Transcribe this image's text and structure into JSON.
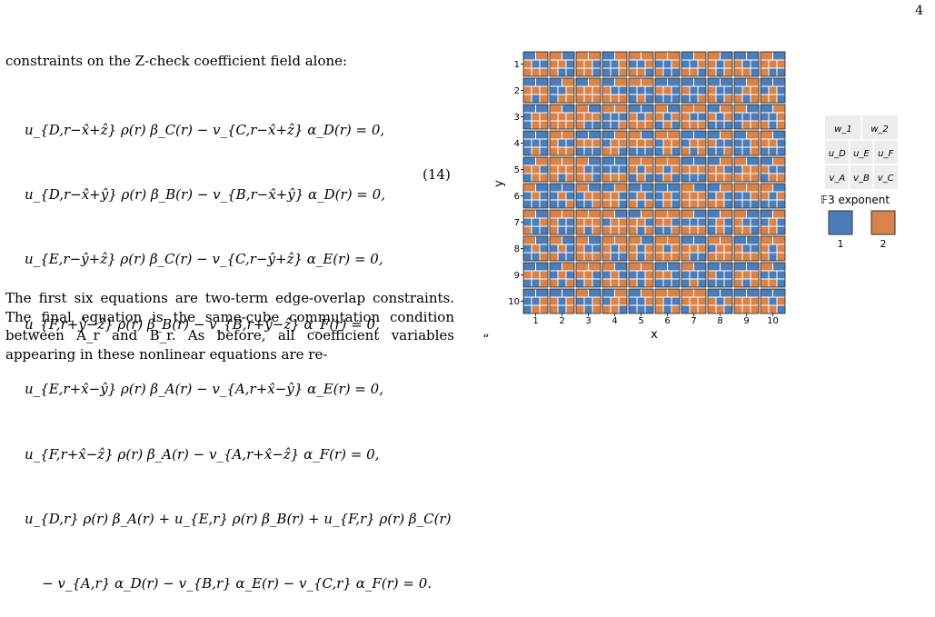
{
  "page_number": "4",
  "intro_line": "constraints on the Z-check coefficient field alone:",
  "equations": [
    "u_{D,r−x̂+ẑ} ρ(r) β_C(r) − v_{C,r−x̂+ẑ} α_D(r) = 0,",
    "u_{D,r−x̂+ŷ} ρ(r) β_B(r) − v_{B,r−x̂+ŷ} α_D(r) = 0,",
    "u_{E,r−ŷ+ẑ} ρ(r) β_C(r) − v_{C,r−ŷ+ẑ} α_E(r) = 0,",
    "u_{F,r+ŷ−ẑ} ρ(r) β_B(r) − v_{B,r+ŷ−ẑ} α_F(r) = 0,",
    "u_{E,r+x̂−ŷ} ρ(r) β_A(r) − v_{A,r+x̂−ŷ} α_E(r) = 0,",
    "u_{F,r+x̂−ẑ} ρ(r) β_A(r) − v_{A,r+x̂−ẑ} α_F(r) = 0,",
    "u_{D,r} ρ(r) β_A(r) + u_{E,r} ρ(r) β_B(r) + u_{F,r} ρ(r) β_C(r)",
    "    − v_{A,r} α_D(r) − v_{B,r} α_E(r) − v_{C,r} α_F(r) = 0."
  ],
  "equation_number": "(14)",
  "paragraph": "The first six equations are two-term edge-overlap constraints. The final equation is the same-cube commutation condition between A_r and B_r. As before, all coefficient variables appearing in these nonlinear equations are re-",
  "stray_mark": "“",
  "chart_data": {
    "type": "heatmap",
    "xlabel": "x",
    "ylabel": "y",
    "x_ticks": [
      "1",
      "2",
      "3",
      "4",
      "5",
      "6",
      "7",
      "8",
      "9",
      "10"
    ],
    "y_ticks": [
      "1",
      "2",
      "3",
      "4",
      "5",
      "6",
      "7",
      "8",
      "9",
      "10"
    ],
    "colors": {
      "exp1": "#4c7db8",
      "exp2": "#d9834a"
    },
    "legend": {
      "header_row": [
        "w_1",
        "w_2"
      ],
      "row_u": [
        "u_D",
        "u_E",
        "u_F"
      ],
      "row_v": [
        "v_A",
        "v_B",
        "v_C"
      ],
      "title": "𝔽3 exponent",
      "entries": [
        "1",
        "2"
      ]
    }
  }
}
